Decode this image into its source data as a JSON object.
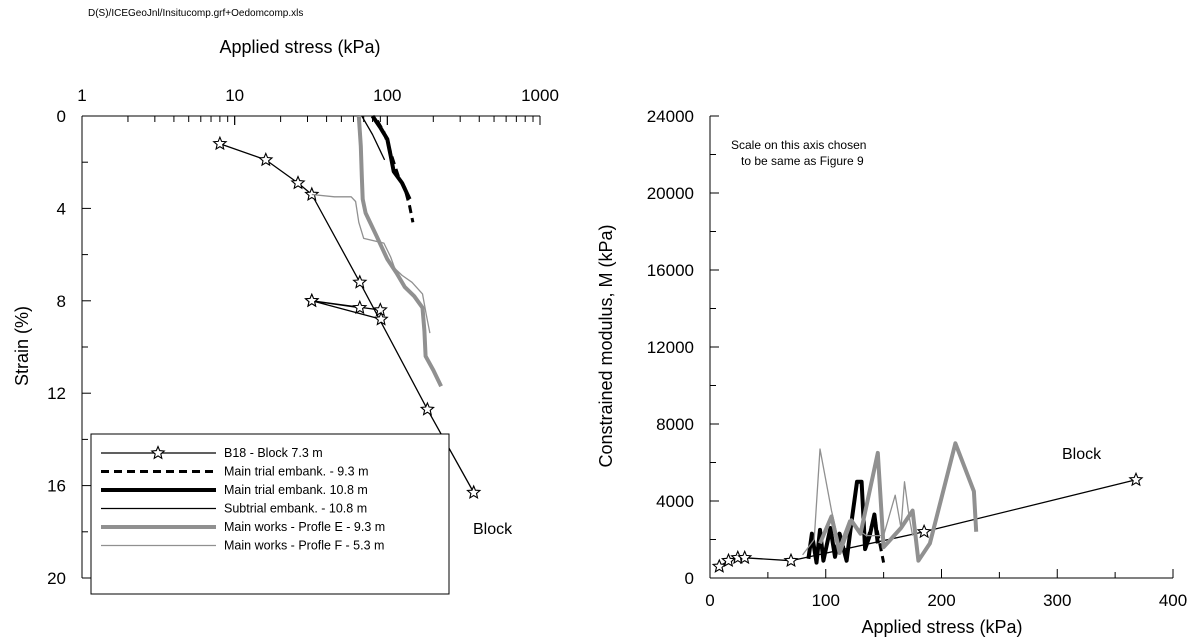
{
  "file_path": "D(S)/ICEGeoJnl/Insitucomp.grf+Oedomcomp.xls",
  "chart_data": [
    {
      "type": "line",
      "xlabel": "Applied stress (kPa)",
      "ylabel": "Strain (%)",
      "x_scale": "log",
      "xlim": [
        1,
        1000
      ],
      "x_ticks": [
        "1",
        "10",
        "100",
        "1000"
      ],
      "ylim": [
        0,
        20
      ],
      "y_inverted": true,
      "y_ticks": [
        "0",
        "4",
        "8",
        "12",
        "16",
        "20"
      ],
      "x_axis_position": "top",
      "legend_position": "bottom-left",
      "annotations": [
        "Block"
      ],
      "series": [
        {
          "name": "B18 - Block 7.3 m",
          "color": "#000000",
          "dash": "solid",
          "marker": "star",
          "weight": "thin",
          "points": [
            [
              8,
              1.2
            ],
            [
              16,
              1.9
            ],
            [
              26,
              2.9
            ],
            [
              32,
              3.4
            ],
            [
              66,
              7.2
            ],
            [
              183,
              12.7
            ],
            [
              368,
              16.3
            ]
          ]
        },
        {
          "name": "",
          "color": "#000000",
          "dash": "solid",
          "marker": "star",
          "weight": "thin",
          "points": [
            [
              32,
              8.0
            ],
            [
              90,
              8.4
            ],
            [
              91,
              8.8
            ],
            [
              32,
              8.0
            ],
            [
              66,
              8.3
            ]
          ]
        },
        {
          "name": "Main trial embank. - 9.3 m",
          "color": "#000000",
          "dash": "dashed",
          "marker": "none",
          "weight": "medium",
          "points": [
            [
              86,
              0.2
            ],
            [
              95,
              0.7
            ],
            [
              102,
              1.3
            ],
            [
              110,
              2.0
            ],
            [
              118,
              2.6
            ],
            [
              130,
              3.1
            ],
            [
              140,
              3.9
            ],
            [
              147,
              4.6
            ]
          ]
        },
        {
          "name": "Main trial embank. 10.8 m",
          "color": "#000000",
          "dash": "solid",
          "marker": "none",
          "weight": "thick",
          "points": [
            [
              80,
              0.0
            ],
            [
              90,
              0.5
            ],
            [
              100,
              1.0
            ],
            [
              105,
              1.7
            ],
            [
              110,
              2.4
            ],
            [
              125,
              2.9
            ],
            [
              140,
              3.6
            ]
          ]
        },
        {
          "name": "Subtrial embank. - 10.8 m",
          "color": "#000000",
          "dash": "solid",
          "marker": "none",
          "weight": "thin",
          "points": [
            [
              68,
              0.0
            ],
            [
              80,
              0.8
            ],
            [
              96,
              1.9
            ]
          ]
        },
        {
          "name": "Main works - Profle E - 9.3 m",
          "color": "#909090",
          "dash": "solid",
          "marker": "none",
          "weight": "thick",
          "points": [
            [
              65,
              0.0
            ],
            [
              67,
              1.3
            ],
            [
              68,
              2.6
            ],
            [
              69,
              3.6
            ],
            [
              72,
              4.2
            ],
            [
              85,
              5.2
            ],
            [
              100,
              6.2
            ],
            [
              115,
              6.8
            ],
            [
              130,
              7.4
            ],
            [
              150,
              7.8
            ],
            [
              170,
              8.3
            ],
            [
              175,
              9.3
            ],
            [
              178,
              10.4
            ],
            [
              200,
              11.0
            ],
            [
              225,
              11.7
            ]
          ]
        },
        {
          "name": "Main works - Profle F - 5.3 m",
          "color": "#909090",
          "dash": "solid",
          "marker": "none",
          "weight": "thin",
          "points": [
            [
              32,
              3.4
            ],
            [
              45,
              3.5
            ],
            [
              58,
              3.5
            ],
            [
              62,
              3.7
            ],
            [
              65,
              4.6
            ],
            [
              70,
              5.3
            ],
            [
              95,
              5.5
            ],
            [
              105,
              6.1
            ],
            [
              112,
              6.6
            ],
            [
              125,
              6.9
            ],
            [
              145,
              7.2
            ],
            [
              170,
              7.7
            ],
            [
              180,
              8.6
            ],
            [
              190,
              9.4
            ]
          ]
        }
      ]
    },
    {
      "type": "line",
      "xlabel": "Applied stress (kPa)",
      "ylabel": "Constrained modulus, M (kPa)",
      "xlim": [
        0,
        400
      ],
      "x_ticks": [
        "0",
        "100",
        "200",
        "300",
        "400"
      ],
      "ylim": [
        0,
        24000
      ],
      "y_ticks": [
        "0",
        "4000",
        "8000",
        "12000",
        "16000",
        "20000",
        "24000"
      ],
      "annotations": [
        "Scale on this axis chosen",
        "to be same as Figure 9",
        "Block"
      ],
      "series": [
        {
          "name": "B18 - Block 7.3 m",
          "color": "#000000",
          "dash": "solid",
          "marker": "star",
          "weight": "thin",
          "points": [
            [
              8,
              600
            ],
            [
              16,
              900
            ],
            [
              24,
              1050
            ],
            [
              30,
              1050
            ],
            [
              70,
              900
            ],
            [
              185,
              2400
            ],
            [
              368,
              5100
            ]
          ]
        },
        {
          "name": "Main trial embank. 10.8 m",
          "color": "#000000",
          "dash": "solid",
          "marker": "none",
          "weight": "thick",
          "points": [
            [
              85,
              1000
            ],
            [
              88,
              2300
            ],
            [
              92,
              800
            ],
            [
              95,
              2500
            ],
            [
              98,
              900
            ],
            [
              104,
              2600
            ],
            [
              108,
              1100
            ],
            [
              112,
              2300
            ],
            [
              118,
              900
            ],
            [
              122,
              2800
            ],
            [
              127,
              5000
            ],
            [
              131,
              5000
            ],
            [
              134,
              1500
            ],
            [
              138,
              2200
            ],
            [
              142,
              3300
            ],
            [
              145,
              1800
            ]
          ]
        },
        {
          "name": "Main trial embank. - 9.3 m",
          "color": "#000000",
          "dash": "dashed",
          "marker": "none",
          "weight": "medium",
          "points": [
            [
              130,
              2600
            ],
            [
              136,
              2000
            ],
            [
              142,
              3200
            ],
            [
              146,
              2000
            ],
            [
              150,
              800
            ]
          ]
        },
        {
          "name": "Main works - Profle E - 9.3 m",
          "color": "#909090",
          "dash": "solid",
          "marker": "none",
          "weight": "thick",
          "points": [
            [
              95,
              1800
            ],
            [
              105,
              3200
            ],
            [
              112,
              1300
            ],
            [
              122,
              3000
            ],
            [
              130,
              2300
            ],
            [
              145,
              6500
            ],
            [
              150,
              1600
            ],
            [
              165,
              2600
            ],
            [
              175,
              3500
            ],
            [
              180,
              900
            ],
            [
              190,
              1800
            ],
            [
              212,
              7000
            ],
            [
              228,
              4500
            ],
            [
              230,
              2400
            ]
          ]
        },
        {
          "name": "Main works - Profle F - 5.3 m",
          "color": "#909090",
          "dash": "solid",
          "marker": "none",
          "weight": "thin",
          "points": [
            [
              80,
              1200
            ],
            [
              90,
              2000
            ],
            [
              95,
              6700
            ],
            [
              105,
              3500
            ],
            [
              112,
              1700
            ],
            [
              120,
              3000
            ],
            [
              128,
              2500
            ],
            [
              135,
              2200
            ],
            [
              142,
              2200
            ],
            [
              150,
              2200
            ],
            [
              160,
              4300
            ],
            [
              165,
              2600
            ],
            [
              168,
              5000
            ],
            [
              172,
              3200
            ],
            [
              175,
              2200
            ]
          ]
        }
      ]
    }
  ]
}
